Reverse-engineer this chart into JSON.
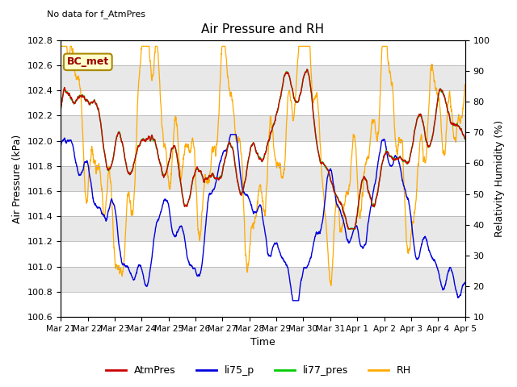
{
  "title": "Air Pressure and RH",
  "subtitle": "No data for f_AtmPres",
  "station_label": "BC_met",
  "ylabel_left": "Air Pressure (kPa)",
  "ylabel_right": "Relativity Humidity (%)",
  "xlabel": "Time",
  "ylim_left": [
    100.6,
    102.8
  ],
  "ylim_right": [
    10,
    100
  ],
  "yticks_left": [
    100.6,
    100.8,
    101.0,
    101.2,
    101.4,
    101.6,
    101.8,
    102.0,
    102.2,
    102.4,
    102.6,
    102.8
  ],
  "yticks_right": [
    10,
    20,
    30,
    40,
    50,
    60,
    70,
    80,
    90,
    100
  ],
  "xtick_labels": [
    "Mar 21",
    "Mar 22",
    "Mar 23",
    "Mar 24",
    "Mar 25",
    "Mar 26",
    "Mar 27",
    "Mar 28",
    "Mar 29",
    "Mar 30",
    "Mar 31",
    "Apr 1",
    "Apr 2",
    "Apr 3",
    "Apr 4",
    "Apr 5"
  ],
  "colors": {
    "AtmPres": "#cc0000",
    "li75_p": "#0000dd",
    "li77_pres": "#00cc00",
    "RH": "#ffaa00",
    "background": "#e8e8e8",
    "band": "#ffffff"
  },
  "n_days": 15,
  "n_pts": 2160
}
